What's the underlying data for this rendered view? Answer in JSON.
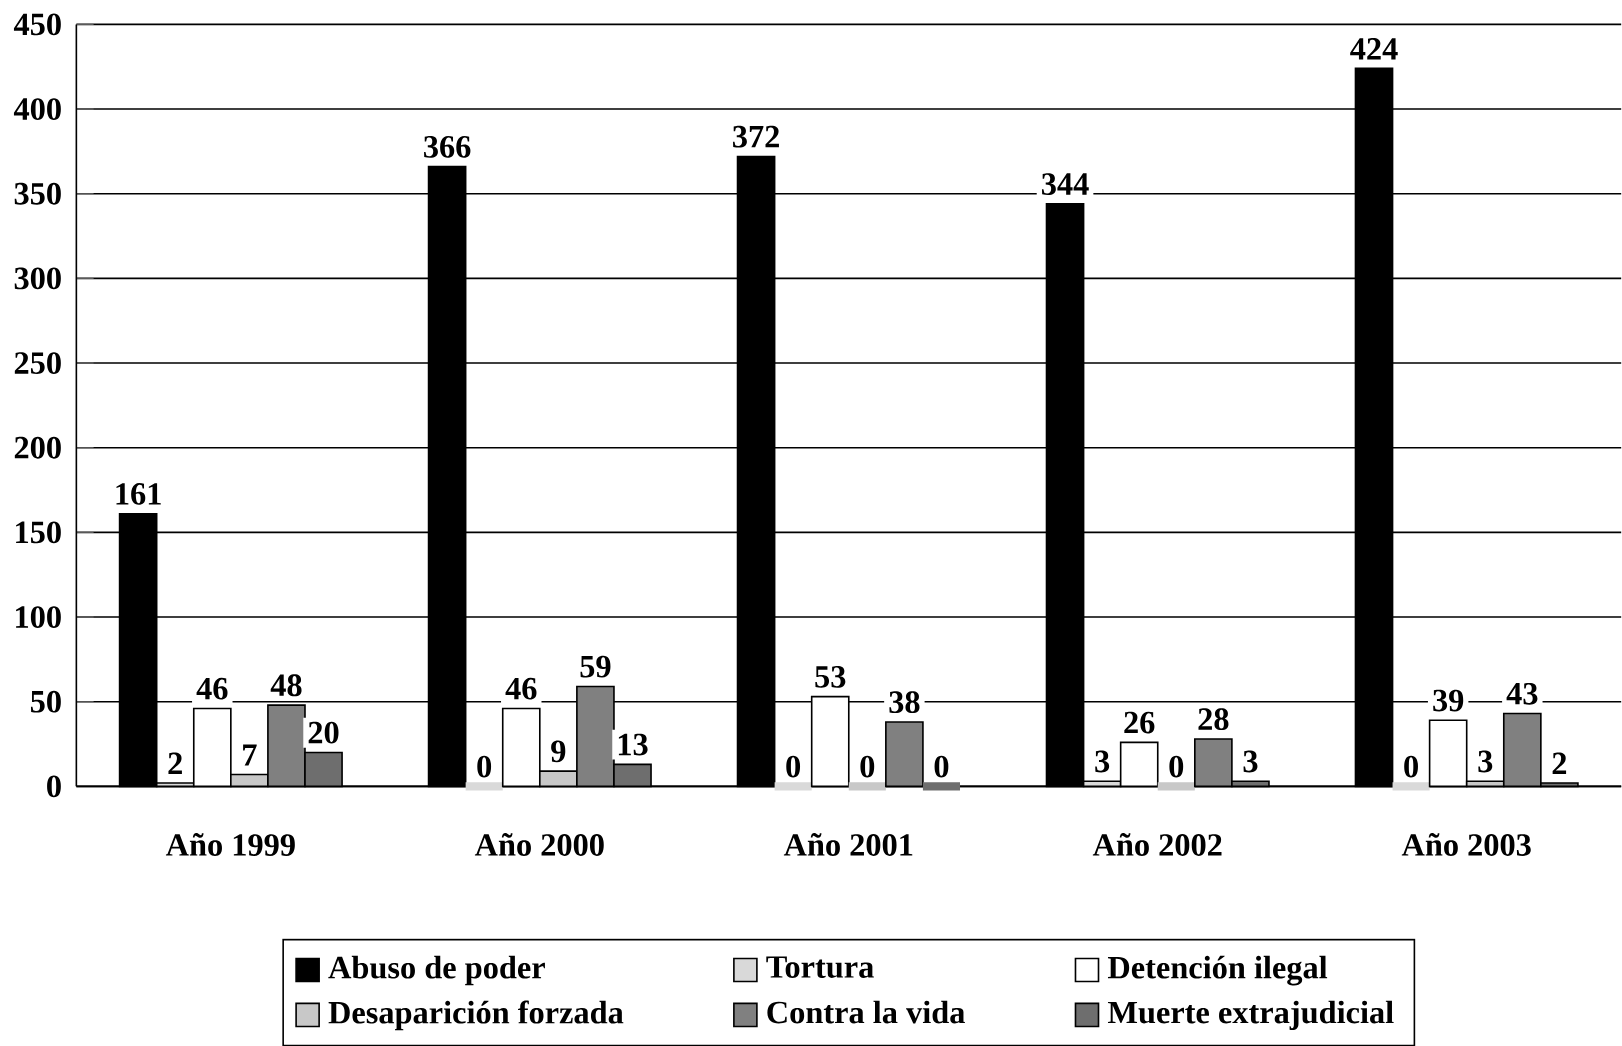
{
  "chart_data": {
    "type": "bar",
    "categories": [
      "Año 1999",
      "Año 2000",
      "Año 2001",
      "Año 2002",
      "Año 2003"
    ],
    "series": [
      {
        "name": "Abuso de poder",
        "color": "#000000",
        "values": [
          161,
          366,
          372,
          344,
          424
        ]
      },
      {
        "name": "Tortura",
        "color": "#d9d9d9",
        "values": [
          2,
          0,
          0,
          3,
          0
        ]
      },
      {
        "name": "Detención ilegal",
        "color": "#ffffff",
        "values": [
          46,
          46,
          53,
          26,
          39
        ]
      },
      {
        "name": "Desaparición forzada",
        "color": "#c8c8c8",
        "values": [
          7,
          9,
          0,
          0,
          3
        ]
      },
      {
        "name": "Contra la vida",
        "color": "#808080",
        "values": [
          48,
          59,
          38,
          28,
          43
        ]
      },
      {
        "name": "Muerte extrajudicial",
        "color": "#6e6e6e",
        "values": [
          20,
          13,
          0,
          3,
          2
        ]
      }
    ],
    "ylim": [
      0,
      450
    ],
    "yticks": [
      0,
      50,
      100,
      150,
      200,
      250,
      300,
      350,
      400,
      450
    ],
    "grid": "y",
    "legend": "bottom",
    "data_labels": true
  }
}
